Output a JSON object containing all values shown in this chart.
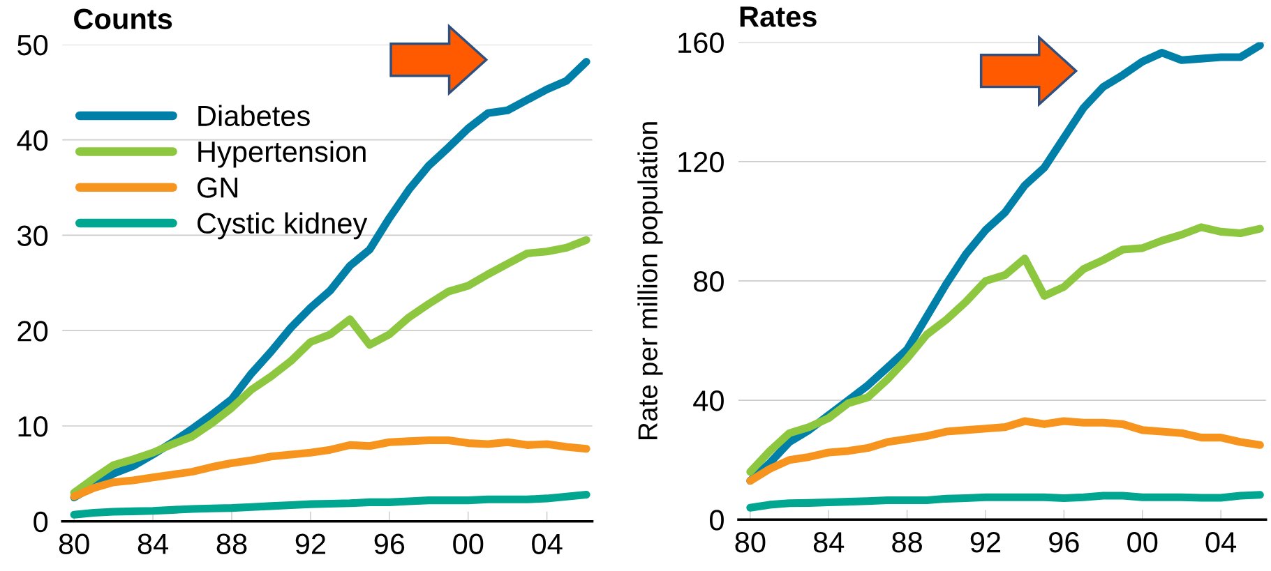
{
  "chart_data": [
    {
      "type": "line",
      "title": "Counts",
      "x": [
        1980,
        1981,
        1982,
        1983,
        1984,
        1985,
        1986,
        1987,
        1988,
        1989,
        1990,
        1991,
        1992,
        1993,
        1994,
        1995,
        1996,
        1997,
        1998,
        1999,
        2000,
        2001,
        2002,
        2003,
        2004,
        2005,
        2006
      ],
      "series": [
        {
          "name": "Diabetes",
          "color": "#0080a8",
          "values": [
            2.5,
            3.7,
            5,
            5.8,
            7,
            8.3,
            9.7,
            11.2,
            12.8,
            15.5,
            17.8,
            20.3,
            22.4,
            24.2,
            26.8,
            28.5,
            31.8,
            34.8,
            37.3,
            39.2,
            41.2,
            42.8,
            43.1,
            44.2,
            45.3,
            46.2,
            48.2
          ]
        },
        {
          "name": "Hypertension",
          "color": "#8dc63f",
          "values": [
            3,
            4.5,
            5.9,
            6.5,
            7.2,
            8.1,
            8.9,
            10.3,
            11.9,
            13.8,
            15.2,
            16.8,
            18.8,
            19.6,
            21.2,
            18.5,
            19.6,
            21.4,
            22.8,
            24.1,
            24.7,
            25.9,
            27,
            28.1,
            28.3,
            28.7,
            29.5
          ]
        },
        {
          "name": "GN",
          "color": "#f7941d",
          "values": [
            2.6,
            3.5,
            4.1,
            4.3,
            4.6,
            4.9,
            5.2,
            5.7,
            6.1,
            6.4,
            6.8,
            7.0,
            7.2,
            7.5,
            8.0,
            7.9,
            8.3,
            8.4,
            8.5,
            8.5,
            8.2,
            8.1,
            8.3,
            8.0,
            8.1,
            7.8,
            7.6
          ]
        },
        {
          "name": "Cystic kidney",
          "color": "#00a68f",
          "values": [
            0.7,
            0.9,
            1.0,
            1.05,
            1.1,
            1.2,
            1.3,
            1.35,
            1.4,
            1.5,
            1.6,
            1.7,
            1.8,
            1.85,
            1.9,
            2.0,
            2.0,
            2.1,
            2.2,
            2.2,
            2.2,
            2.3,
            2.3,
            2.3,
            2.4,
            2.6,
            2.8
          ]
        }
      ],
      "xlim": [
        1979.4,
        2006.3
      ],
      "ylim": [
        0,
        50
      ],
      "xticks": [
        {
          "value": 1980,
          "label": "80"
        },
        {
          "value": 1984,
          "label": "84"
        },
        {
          "value": 1988,
          "label": "88"
        },
        {
          "value": 1992,
          "label": "92"
        },
        {
          "value": 1996,
          "label": "96"
        },
        {
          "value": 2000,
          "label": "00"
        },
        {
          "value": 2004,
          "label": "04"
        }
      ],
      "yticks": [
        0,
        10,
        20,
        30,
        40,
        50
      ],
      "grid": "y",
      "legend": "top left",
      "marker": "none",
      "line_style": "solid"
    },
    {
      "type": "line",
      "title": "Rates",
      "ylabel": "Rate per million population",
      "x": [
        1980,
        1981,
        1982,
        1983,
        1984,
        1985,
        1986,
        1987,
        1988,
        1989,
        1990,
        1991,
        1992,
        1993,
        1994,
        1995,
        1996,
        1997,
        1998,
        1999,
        2000,
        2001,
        2002,
        2003,
        2004,
        2005,
        2006
      ],
      "series": [
        {
          "color": "#0080a8",
          "values": [
            13,
            19,
            26,
            30,
            35,
            40,
            45,
            51,
            57,
            68,
            79,
            89,
            97,
            103,
            112,
            118,
            128,
            138,
            145,
            149,
            153.5,
            156.5,
            154,
            154.5,
            155,
            155,
            159
          ]
        },
        {
          "color": "#8dc63f",
          "values": [
            16,
            23,
            29,
            31,
            34,
            39,
            41,
            47,
            54,
            62,
            67,
            73,
            80,
            82,
            87.5,
            75,
            78,
            84,
            87,
            90.5,
            91,
            93.5,
            95.5,
            98,
            96.5,
            96,
            97.5
          ]
        },
        {
          "color": "#f7941d",
          "values": [
            13,
            17,
            20,
            21,
            22.5,
            23,
            24,
            26,
            27,
            28,
            29.5,
            30,
            30.5,
            31,
            33,
            32,
            33,
            32.5,
            32.5,
            32,
            30,
            29.5,
            29,
            27.5,
            27.5,
            26,
            25
          ]
        },
        {
          "color": "#00a68f",
          "values": [
            4,
            5,
            5.5,
            5.6,
            5.8,
            6,
            6.2,
            6.5,
            6.5,
            6.5,
            7,
            7.2,
            7.5,
            7.5,
            7.5,
            7.5,
            7.2,
            7.5,
            8,
            8,
            7.5,
            7.5,
            7.5,
            7.3,
            7.3,
            8,
            8.3
          ]
        }
      ],
      "xlim": [
        1979.4,
        2006.3
      ],
      "ylim": [
        0,
        160
      ],
      "xticks": [
        {
          "value": 1980,
          "label": "80"
        },
        {
          "value": 1984,
          "label": "84"
        },
        {
          "value": 1988,
          "label": "88"
        },
        {
          "value": 1992,
          "label": "92"
        },
        {
          "value": 1996,
          "label": "96"
        },
        {
          "value": 2000,
          "label": "00"
        },
        {
          "value": 2004,
          "label": "04"
        }
      ],
      "yticks": [
        0,
        40,
        80,
        120,
        160
      ],
      "grid": "y",
      "marker": "none",
      "line_style": "solid"
    }
  ]
}
